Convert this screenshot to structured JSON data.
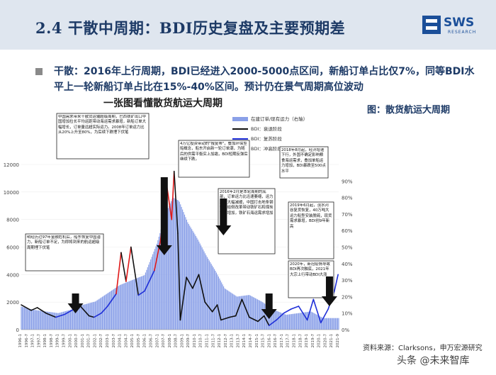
{
  "header": {
    "title": "2.4 干散中周期：BDI历史复盘及主要预期差",
    "logo_text": "SWS",
    "logo_sub": "RESEARCH"
  },
  "bullet": {
    "text": "干散：2016年上行周期，BDI已经进入2000-5000点区间，新船订单占比仅7%，同等BDI水平上一轮新船订单占比在15%-40%区间。预计仍在景气周期高位波动"
  },
  "side_label": "图：散货航运大周期",
  "footnote": "资料来源：Clarksons，申万宏源研究",
  "watermark": "头条 @未来智库",
  "chart_data": {
    "type": "line",
    "title": "一张图看懂散货航运大周期",
    "legend": [
      "在建订单/现有运力（右轴）",
      "BDI：衰退阶段",
      "BDI：复苏阶段",
      "BDI：冲高阶段"
    ],
    "colors": {
      "orderbook": "#8aa0e8",
      "decline": "#111111",
      "recovery": "#1f2fd8",
      "peak": "#e01818"
    },
    "y_left": {
      "min": 0,
      "max": 12000,
      "ticks": [
        "0",
        "2000",
        "4000",
        "6000",
        "8000",
        "10000",
        "12000"
      ]
    },
    "y_right": {
      "min": 0,
      "max": 1.0,
      "ticks": [
        "0%",
        "10%",
        "20%",
        "30%",
        "40%",
        "50%",
        "60%",
        "70%",
        "80%",
        "90%"
      ]
    },
    "x_labels": [
      "1996-1",
      "1996-7",
      "1997-1",
      "1997-7",
      "1998-1",
      "1998-7",
      "1999-1",
      "1999-7",
      "2000-1",
      "2000-7",
      "2001-1",
      "2001-7",
      "2002-1",
      "2002-7",
      "2003-1",
      "2003-7",
      "2004-1",
      "2004-7",
      "2005-1",
      "2005-7",
      "2006-1",
      "2006-7",
      "2007-1",
      "2007-7",
      "2008-1",
      "2008-7",
      "2009-1",
      "2009-7",
      "2010-1",
      "2010-7",
      "2011-1",
      "2011-7",
      "2012-1",
      "2012-7",
      "2013-1",
      "2013-7",
      "2014-1",
      "2014-7",
      "2015-1",
      "2015-7",
      "2016-1",
      "2016-7",
      "2017-1",
      "2017-7",
      "2018-1",
      "2018-7",
      "2019-1",
      "2019-7",
      "2020-1",
      "2020-7",
      "2021-1",
      "2021-9"
    ],
    "orderbook_series": [
      {
        "x": 1996.0,
        "y": 0.14
      },
      {
        "x": 1997.0,
        "y": 0.12
      },
      {
        "x": 1998.0,
        "y": 0.11
      },
      {
        "x": 1999.0,
        "y": 0.1
      },
      {
        "x": 2000.0,
        "y": 0.12
      },
      {
        "x": 2001.0,
        "y": 0.15
      },
      {
        "x": 2002.0,
        "y": 0.17
      },
      {
        "x": 2003.0,
        "y": 0.22
      },
      {
        "x": 2004.0,
        "y": 0.27
      },
      {
        "x": 2005.0,
        "y": 0.3
      },
      {
        "x": 2006.0,
        "y": 0.33
      },
      {
        "x": 2007.0,
        "y": 0.52
      },
      {
        "x": 2007.7,
        "y": 0.7
      },
      {
        "x": 2008.3,
        "y": 0.8
      },
      {
        "x": 2008.8,
        "y": 0.78
      },
      {
        "x": 2009.5,
        "y": 0.65
      },
      {
        "x": 2010.3,
        "y": 0.55
      },
      {
        "x": 2011.0,
        "y": 0.45
      },
      {
        "x": 2011.8,
        "y": 0.35
      },
      {
        "x": 2012.5,
        "y": 0.25
      },
      {
        "x": 2013.5,
        "y": 0.2
      },
      {
        "x": 2014.5,
        "y": 0.21
      },
      {
        "x": 2015.5,
        "y": 0.17
      },
      {
        "x": 2016.5,
        "y": 0.12
      },
      {
        "x": 2017.5,
        "y": 0.09
      },
      {
        "x": 2018.5,
        "y": 0.1
      },
      {
        "x": 2019.5,
        "y": 0.11
      },
      {
        "x": 2020.5,
        "y": 0.07
      },
      {
        "x": 2021.7,
        "y": 0.07
      }
    ],
    "bdi_series": [
      {
        "x": 1996.0,
        "y": 1800,
        "phase": "decline"
      },
      {
        "x": 1996.8,
        "y": 1400,
        "phase": "decline"
      },
      {
        "x": 1997.3,
        "y": 1600,
        "phase": "decline"
      },
      {
        "x": 1998.0,
        "y": 1200,
        "phase": "decline"
      },
      {
        "x": 1998.8,
        "y": 900,
        "phase": "decline"
      },
      {
        "x": 1999.5,
        "y": 1100,
        "phase": "recovery"
      },
      {
        "x": 2000.3,
        "y": 1500,
        "phase": "recovery"
      },
      {
        "x": 2000.8,
        "y": 1700,
        "phase": "recovery"
      },
      {
        "x": 2001.5,
        "y": 1000,
        "phase": "decline"
      },
      {
        "x": 2001.9,
        "y": 900,
        "phase": "decline"
      },
      {
        "x": 2002.5,
        "y": 1200,
        "phase": "recovery"
      },
      {
        "x": 2003.0,
        "y": 1700,
        "phase": "recovery"
      },
      {
        "x": 2003.7,
        "y": 2600,
        "phase": "recovery"
      },
      {
        "x": 2004.1,
        "y": 5600,
        "phase": "peak"
      },
      {
        "x": 2004.5,
        "y": 3500,
        "phase": "decline"
      },
      {
        "x": 2004.9,
        "y": 6000,
        "phase": "peak"
      },
      {
        "x": 2005.5,
        "y": 2500,
        "phase": "decline"
      },
      {
        "x": 2006.0,
        "y": 2800,
        "phase": "recovery"
      },
      {
        "x": 2006.8,
        "y": 4300,
        "phase": "recovery"
      },
      {
        "x": 2007.3,
        "y": 6500,
        "phase": "peak"
      },
      {
        "x": 2007.8,
        "y": 10500,
        "phase": "peak"
      },
      {
        "x": 2008.2,
        "y": 8000,
        "phase": "peak"
      },
      {
        "x": 2008.4,
        "y": 11500,
        "phase": "peak"
      },
      {
        "x": 2008.7,
        "y": 7000,
        "phase": "decline"
      },
      {
        "x": 2008.9,
        "y": 700,
        "phase": "decline"
      },
      {
        "x": 2009.4,
        "y": 3800,
        "phase": "decline"
      },
      {
        "x": 2009.9,
        "y": 3000,
        "phase": "decline"
      },
      {
        "x": 2010.4,
        "y": 4000,
        "phase": "decline"
      },
      {
        "x": 2010.9,
        "y": 2000,
        "phase": "decline"
      },
      {
        "x": 2011.5,
        "y": 1300,
        "phase": "decline"
      },
      {
        "x": 2011.9,
        "y": 1800,
        "phase": "decline"
      },
      {
        "x": 2012.2,
        "y": 700,
        "phase": "decline"
      },
      {
        "x": 2012.9,
        "y": 900,
        "phase": "decline"
      },
      {
        "x": 2013.4,
        "y": 1000,
        "phase": "decline"
      },
      {
        "x": 2013.9,
        "y": 2200,
        "phase": "decline"
      },
      {
        "x": 2014.5,
        "y": 900,
        "phase": "decline"
      },
      {
        "x": 2015.2,
        "y": 600,
        "phase": "decline"
      },
      {
        "x": 2015.7,
        "y": 1000,
        "phase": "decline"
      },
      {
        "x": 2016.1,
        "y": 300,
        "phase": "decline"
      },
      {
        "x": 2016.7,
        "y": 700,
        "phase": "recovery"
      },
      {
        "x": 2017.3,
        "y": 1200,
        "phase": "recovery"
      },
      {
        "x": 2017.9,
        "y": 1500,
        "phase": "recovery"
      },
      {
        "x": 2018.5,
        "y": 1700,
        "phase": "recovery"
      },
      {
        "x": 2019.2,
        "y": 700,
        "phase": "recovery"
      },
      {
        "x": 2019.7,
        "y": 2200,
        "phase": "recovery"
      },
      {
        "x": 2020.3,
        "y": 500,
        "phase": "recovery"
      },
      {
        "x": 2020.9,
        "y": 1500,
        "phase": "recovery"
      },
      {
        "x": 2021.4,
        "y": 2800,
        "phase": "recovery"
      },
      {
        "x": 2021.7,
        "y": 4000,
        "phase": "recovery"
      }
    ],
    "annotations": [
      "中国需求带来干散货运输超级周期，巴西铁矿出口中国增加拉长平均运距带动海运需求暴增，新船订单大幅增长，订单量远超实际运力。2008年订单运力比从20%上升至80%，为后续下跌埋下伏笔",
      "4万亿投资带动的\"报复蒂\"，叠加环保型船概念，船东开启新一轮订单潮，为随后的供需平衡实上加霜，BDI短期反弹后继续下跌。",
      "2018年8月起，经济增速下行，外国不确定影响粮食海运需求，叠加单船运力增加，BDI暴跌至500点水平",
      "明经历过97年金融危机后，船东恢复中国潜力，新船订单不足，为即将到来的航运超级周期埋下伏笔",
      "2016年2月是本轮周期的底部，订单运力比迅速萎缩，运力增速大幅减缓，中国打击地条钢等供给侧改革带动铁矿石和煤炭需求增加，铁矿石海运需求增加",
      "2019年6月起，淡水河谷复货恢复，40万吨大运力船型安装脱硫，现货需求暴增，BDI创9年新高",
      "2020年，新冠疫情导致BDI再次触底，2021年大宗上行带动BDI大涨"
    ]
  }
}
